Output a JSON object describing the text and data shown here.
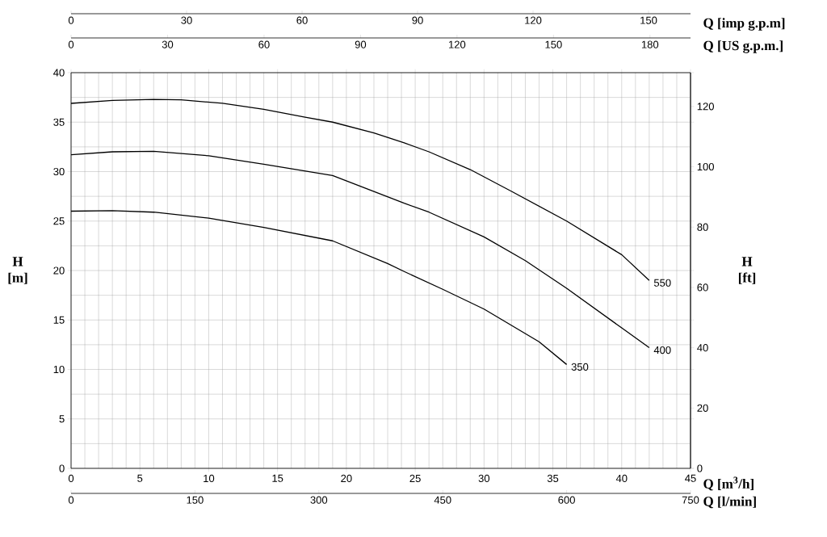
{
  "chart_data": [
    {
      "type": "line",
      "xlabel": "Q [m$^{3}$/h]",
      "ylabel": "H [m]",
      "y2label": "H [ft]",
      "x2label": "Q [US g.p.m.]",
      "xlim": [
        0,
        45
      ],
      "xticks": [
        0,
        5,
        10,
        15,
        20,
        25,
        30,
        35,
        40,
        45
      ],
      "ylim": [
        0,
        40
      ],
      "yticks": [
        0,
        5,
        10,
        15,
        20,
        25,
        30,
        35,
        40
      ],
      "y2lim": [
        0,
        131.2
      ],
      "y2ticks": [
        0,
        20,
        40,
        60,
        80,
        100,
        120
      ],
      "x2lim": [
        0,
        192.6
      ],
      "x2ticks": [
        0,
        30,
        60,
        90,
        120,
        150,
        180
      ],
      "grid": true,
      "series": [
        {
          "name": "550",
          "color": "#000000",
          "x": [
            0,
            3,
            6,
            8,
            11,
            14,
            17,
            19,
            22,
            24.2,
            26,
            29,
            32,
            36,
            40,
            42
          ],
          "values": [
            36.9,
            37.2,
            37.3,
            37.25,
            36.9,
            36.3,
            35.5,
            35.0,
            33.9,
            32.9,
            32.0,
            30.2,
            28.0,
            25.0,
            21.6,
            19.0
          ]
        },
        {
          "name": "400",
          "color": "#000000",
          "x": [
            0,
            3,
            6,
            10,
            14,
            19,
            24.2,
            26,
            30,
            33,
            36,
            40,
            42
          ],
          "values": [
            31.7,
            32.0,
            32.05,
            31.6,
            30.75,
            29.6,
            26.8,
            25.9,
            23.4,
            21.0,
            18.2,
            14.2,
            12.2
          ]
        },
        {
          "name": "350",
          "color": "#000000",
          "x": [
            0,
            3,
            6,
            10,
            14,
            19,
            23,
            24.2,
            27,
            30,
            34,
            36
          ],
          "values": [
            26.0,
            26.05,
            25.9,
            25.3,
            24.35,
            23.0,
            20.7,
            19.9,
            18.1,
            16.1,
            12.8,
            10.5
          ]
        }
      ]
    },
    {
      "type": "line",
      "xlabel": "Q [imp g.p.m]",
      "xlim": [
        0,
        160.9
      ],
      "xticks": [
        0,
        30,
        60,
        90,
        120,
        150
      ],
      "ylim": [
        0,
        40
      ],
      "tick_labels": "x"
    },
    {
      "type": "line",
      "xlabel": "Q [l/min]",
      "xlim": [
        0,
        750
      ],
      "xticks": [
        0,
        150,
        300,
        450,
        600,
        750
      ],
      "ylim": [
        0,
        40
      ],
      "tick_labels": "x"
    }
  ]
}
